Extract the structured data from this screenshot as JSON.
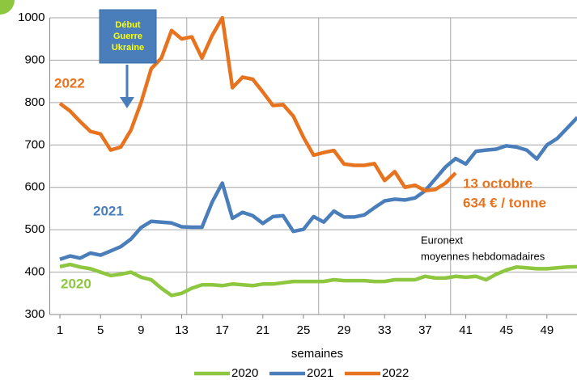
{
  "chart_data": {
    "type": "line",
    "x_label": "semaines",
    "xlim": [
      0,
      52
    ],
    "xticks": [
      1,
      5,
      9,
      13,
      17,
      21,
      25,
      29,
      33,
      37,
      41,
      45,
      49
    ],
    "xgrid": [
      13.5,
      26.5,
      39.5
    ],
    "ylim": [
      300,
      1000
    ],
    "yticks": [
      300,
      400,
      500,
      600,
      700,
      800,
      900,
      1000
    ],
    "grid": true,
    "x": [
      1,
      2,
      3,
      4,
      5,
      6,
      7,
      8,
      9,
      10,
      11,
      12,
      13,
      14,
      15,
      16,
      17,
      18,
      19,
      20,
      21,
      22,
      23,
      24,
      25,
      26,
      27,
      28,
      29,
      30,
      31,
      32,
      33,
      34,
      35,
      36,
      37,
      38,
      39,
      40,
      41,
      42,
      43,
      44,
      45,
      46,
      47,
      48,
      49,
      50,
      51,
      52
    ],
    "series": [
      {
        "name": "2020",
        "color": "#8dc63f",
        "label": "2020",
        "values": [
          413,
          418,
          412,
          408,
          400,
          392,
          395,
          400,
          388,
          382,
          362,
          345,
          350,
          362,
          370,
          370,
          368,
          372,
          370,
          368,
          372,
          372,
          375,
          378,
          378,
          378,
          378,
          382,
          380,
          380,
          380,
          378,
          378,
          382,
          382,
          382,
          390,
          386,
          386,
          390,
          388,
          390,
          382,
          395,
          405,
          412,
          410,
          408,
          408,
          410,
          412,
          413
        ]
      },
      {
        "name": "2021",
        "color": "#4a7ebb",
        "label": "2021",
        "values": [
          430,
          438,
          433,
          445,
          440,
          450,
          460,
          478,
          505,
          520,
          518,
          516,
          507,
          506,
          506,
          565,
          610,
          527,
          541,
          533,
          515,
          531,
          533,
          496,
          501,
          531,
          518,
          544,
          530,
          530,
          535,
          552,
          568,
          572,
          570,
          575,
          592,
          620,
          648,
          668,
          655,
          685,
          688,
          690,
          698,
          695,
          688,
          667,
          700,
          715,
          740,
          765
        ]
      },
      {
        "name": "2022",
        "color": "#e8731f",
        "label": "2022",
        "values": [
          798,
          780,
          755,
          732,
          726,
          688,
          695,
          735,
          800,
          880,
          905,
          970,
          950,
          955,
          905,
          958,
          1000,
          835,
          860,
          855,
          825,
          793,
          795,
          768,
          718,
          676,
          682,
          687,
          655,
          652,
          652,
          656,
          616,
          637,
          600,
          605,
          592,
          595,
          610,
          634,
          null,
          null,
          null,
          null,
          null,
          null,
          null,
          null,
          null,
          null,
          null,
          null
        ]
      }
    ],
    "annotations": {
      "war": "Début\nGuerre\nUkraine",
      "last_date": "13 octobre",
      "last_price": "634 € / tonne",
      "source_1": "Euronext",
      "source_2": "moyennes hebdomadaires"
    }
  }
}
